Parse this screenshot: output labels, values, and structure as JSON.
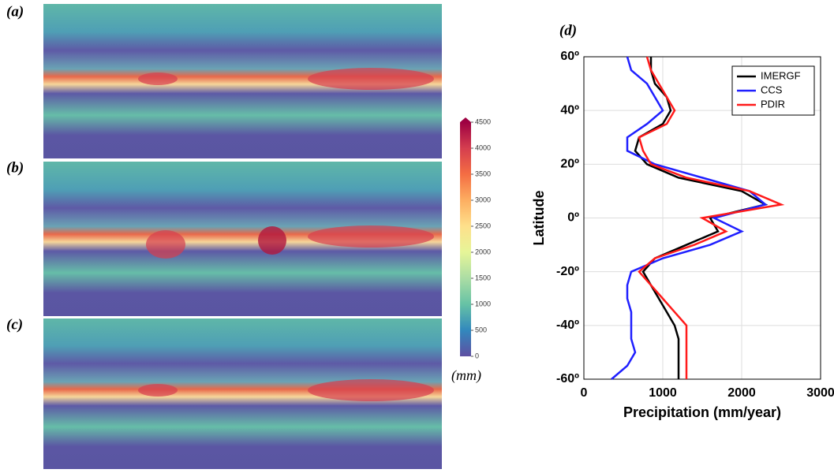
{
  "panels": {
    "a": "(a)",
    "b": "(b)",
    "c": "(c)"
  },
  "colorbar": {
    "label": "(mm)",
    "lim": [
      0,
      4500
    ],
    "ticks": [
      0,
      500,
      1000,
      1500,
      2000,
      2500,
      3000,
      3500,
      4000,
      4500
    ],
    "colors": [
      "#5e4fa2",
      "#3288bd",
      "#66c2a5",
      "#abdda4",
      "#e6f598",
      "#fee08b",
      "#fdae61",
      "#f46d43",
      "#d53e4f",
      "#9e0142"
    ]
  },
  "chart_data": {
    "type": "line",
    "title": "(d)",
    "x_label": "Precipitation (mm/year)",
    "y_label": "Latitude",
    "y": [
      60,
      55,
      50,
      45,
      40,
      35,
      30,
      25,
      20,
      15,
      10,
      5,
      0,
      -5,
      -10,
      -15,
      -20,
      -25,
      -30,
      -35,
      -40,
      -45,
      -50,
      -55,
      -60
    ],
    "series": [
      {
        "name": "IMERGF",
        "color": "#000000",
        "values": [
          850,
          850,
          900,
          1050,
          1100,
          1000,
          700,
          650,
          800,
          1200,
          2000,
          2300,
          1600,
          1700,
          1300,
          900,
          750,
          850,
          950,
          1050,
          1150,
          1200,
          1200,
          1200,
          1200
        ]
      },
      {
        "name": "CCS",
        "color": "#1f1fff",
        "values": [
          550,
          600,
          800,
          900,
          1000,
          800,
          550,
          550,
          900,
          1500,
          2100,
          2300,
          1650,
          2000,
          1600,
          1000,
          600,
          550,
          550,
          600,
          600,
          600,
          650,
          550,
          350
        ]
      },
      {
        "name": "PDIR",
        "color": "#ff1a1a",
        "values": [
          800,
          850,
          950,
          1050,
          1150,
          1050,
          700,
          750,
          850,
          1300,
          2100,
          2500,
          1500,
          1800,
          1400,
          900,
          700,
          850,
          1000,
          1150,
          1300,
          1300,
          1300,
          1300,
          1300
        ]
      }
    ],
    "xlim": [
      0,
      3000
    ],
    "xticks": [
      0,
      1000,
      2000,
      3000
    ],
    "ylim": [
      -60,
      60
    ],
    "yticks": [
      {
        "value": -60,
        "label": "-60º"
      },
      {
        "value": -40,
        "label": "-40º"
      },
      {
        "value": -20,
        "label": "-20º"
      },
      {
        "value": 0,
        "label": "0º"
      },
      {
        "value": 20,
        "label": "20º"
      },
      {
        "value": 40,
        "label": "40º"
      },
      {
        "value": 60,
        "label": "60º"
      }
    ],
    "grid": true,
    "legend": "top-right"
  }
}
